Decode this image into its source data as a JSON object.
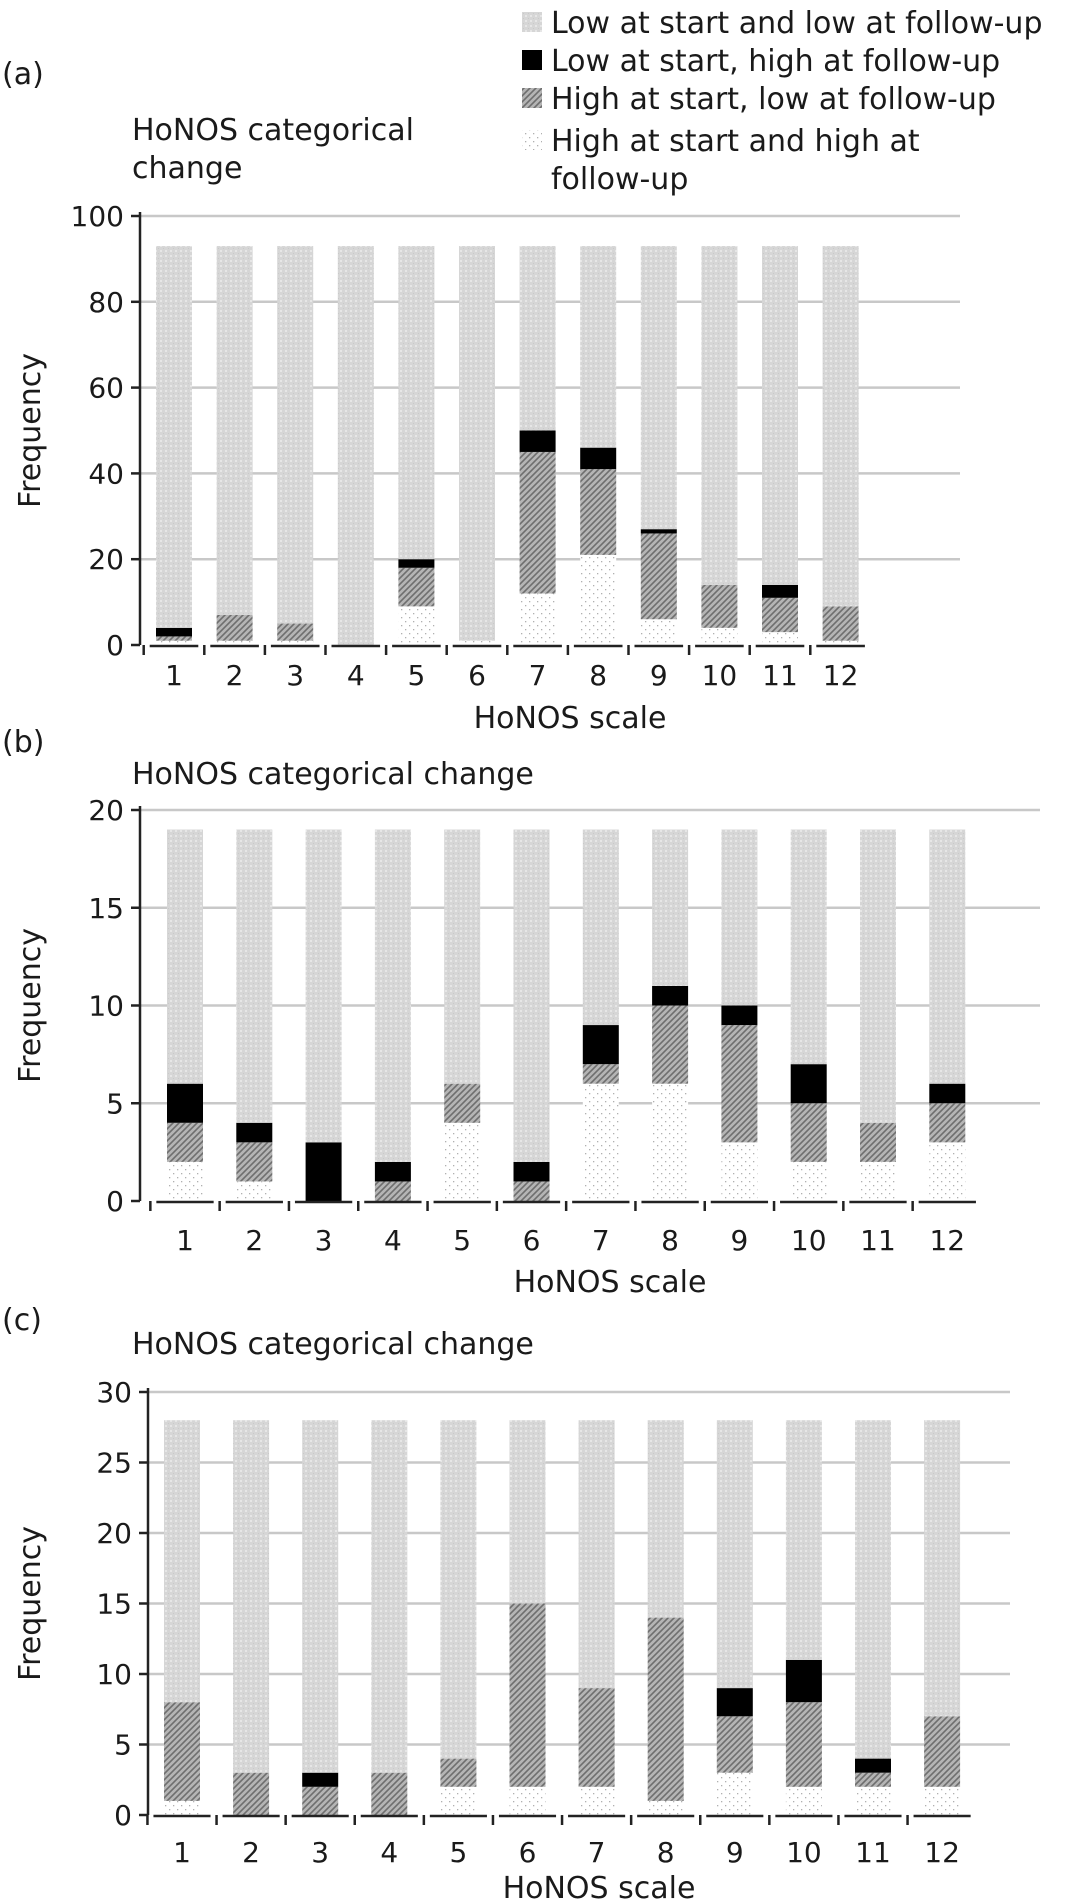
{
  "legend": {
    "entries": [
      {
        "key": "low_low",
        "label": "Low at start and low at follow-up"
      },
      {
        "key": "low_high",
        "label": "Low at start, high at follow-up"
      },
      {
        "key": "high_low",
        "label": "High at start, low at follow-up"
      },
      {
        "key": "high_high",
        "label": "High at start and high at follow-up",
        "lines": [
          "High at start and high at",
          "follow-up"
        ]
      }
    ]
  },
  "colors": {
    "low_low": "#dcdcdc",
    "low_high": "#000000",
    "high_low": "#9a9a9a",
    "high_high": "#ffffff",
    "grid": "#c8c8c8",
    "axis": "#222222"
  },
  "chart_data": [
    {
      "panel": "(a)",
      "type": "bar",
      "stacked": true,
      "title": "HoNOS categorical change",
      "title_lines": [
        "HoNOS categorical",
        "change"
      ],
      "xlabel": "HoNOS scale",
      "ylabel": "Frequency",
      "ylim": [
        0,
        100
      ],
      "yticks": [
        0,
        20,
        40,
        60,
        80,
        100
      ],
      "categories": [
        "1",
        "2",
        "3",
        "4",
        "5",
        "6",
        "7",
        "8",
        "9",
        "10",
        "11",
        "12"
      ],
      "series": [
        {
          "name": "High at start and high at follow-up",
          "key": "high_high",
          "values": [
            1,
            1,
            1,
            0,
            9,
            1,
            12,
            21,
            6,
            4,
            3,
            1
          ]
        },
        {
          "name": "High at start, low at follow-up",
          "key": "high_low",
          "values": [
            1,
            6,
            4,
            0,
            9,
            0,
            33,
            20,
            20,
            10,
            8,
            8
          ]
        },
        {
          "name": "Low at start, high at follow-up",
          "key": "low_high",
          "values": [
            2,
            0,
            0,
            0,
            2,
            0,
            5,
            5,
            1,
            0,
            3,
            0
          ]
        },
        {
          "name": "Low at start and low at follow-up",
          "key": "low_low",
          "values": [
            89,
            86,
            88,
            93,
            73,
            92,
            43,
            47,
            66,
            79,
            79,
            84
          ]
        }
      ]
    },
    {
      "panel": "(b)",
      "type": "bar",
      "stacked": true,
      "title": "HoNOS categorical change",
      "title_lines": [
        "HoNOS categorical change"
      ],
      "xlabel": "HoNOS scale",
      "ylabel": "Frequency",
      "ylim": [
        0,
        20
      ],
      "yticks": [
        0,
        5,
        10,
        15,
        20
      ],
      "categories": [
        "1",
        "2",
        "3",
        "4",
        "5",
        "6",
        "7",
        "8",
        "9",
        "10",
        "11",
        "12"
      ],
      "series": [
        {
          "name": "High at start and high at follow-up",
          "key": "high_high",
          "values": [
            2,
            1,
            0,
            0,
            4,
            0,
            6,
            6,
            3,
            2,
            2,
            3
          ]
        },
        {
          "name": "High at start, low at follow-up",
          "key": "high_low",
          "values": [
            2,
            2,
            0,
            1,
            2,
            1,
            1,
            4,
            6,
            3,
            2,
            2
          ]
        },
        {
          "name": "Low at start, high at follow-up",
          "key": "low_high",
          "values": [
            2,
            1,
            3,
            1,
            0,
            1,
            2,
            1,
            1,
            2,
            0,
            1
          ]
        },
        {
          "name": "Low at start and low at follow-up",
          "key": "low_low",
          "values": [
            13,
            15,
            16,
            17,
            13,
            17,
            10,
            8,
            9,
            12,
            15,
            13
          ]
        }
      ]
    },
    {
      "panel": "(c)",
      "type": "bar",
      "stacked": true,
      "title": "HoNOS categorical change",
      "title_lines": [
        "HoNOS categorical change"
      ],
      "xlabel": "HoNOS scale",
      "ylabel": "Frequency",
      "ylim": [
        0,
        30
      ],
      "yticks": [
        0,
        5,
        10,
        15,
        20,
        25,
        30
      ],
      "categories": [
        "1",
        "2",
        "3",
        "4",
        "5",
        "6",
        "7",
        "8",
        "9",
        "10",
        "11",
        "12"
      ],
      "series": [
        {
          "name": "High at start and high at follow-up",
          "key": "high_high",
          "values": [
            1,
            0,
            0,
            0,
            2,
            2,
            2,
            1,
            3,
            2,
            2,
            2
          ]
        },
        {
          "name": "High at start, low at follow-up",
          "key": "high_low",
          "values": [
            7,
            3,
            2,
            3,
            2,
            13,
            7,
            13,
            4,
            6,
            1,
            5
          ]
        },
        {
          "name": "Low at start, high at follow-up",
          "key": "low_high",
          "values": [
            0,
            0,
            1,
            0,
            0,
            0,
            0,
            0,
            2,
            3,
            1,
            0
          ]
        },
        {
          "name": "Low at start and low at follow-up",
          "key": "low_low",
          "values": [
            20,
            25,
            25,
            25,
            24,
            13,
            19,
            14,
            19,
            17,
            24,
            21
          ]
        }
      ]
    }
  ]
}
